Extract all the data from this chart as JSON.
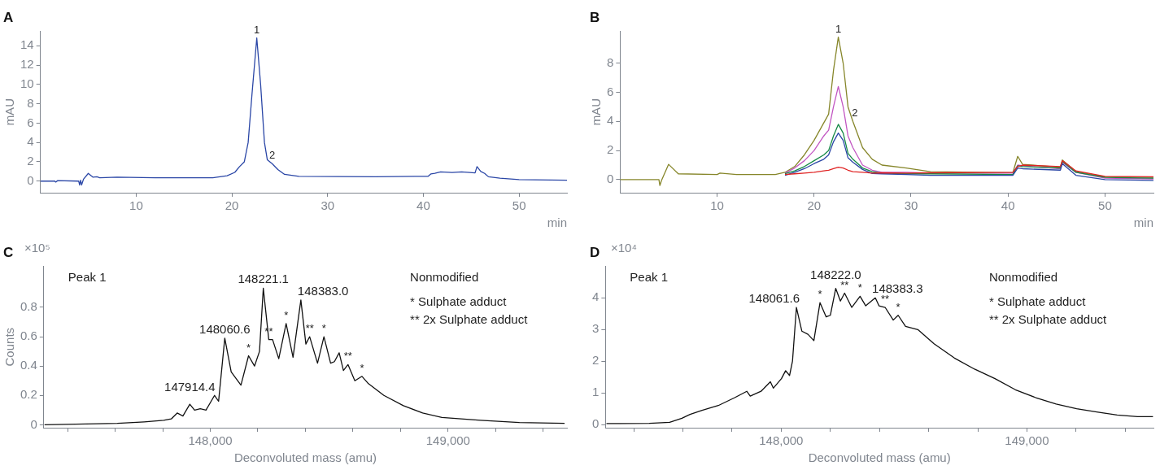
{
  "chart_data": [
    {
      "type": "line",
      "title": "A",
      "xlabel": "min",
      "ylabel": "mAU",
      "xlim": [
        0,
        55
      ],
      "xticks": [
        10,
        20,
        30,
        40,
        50
      ],
      "ylim": [
        -1.2,
        15.5
      ],
      "yticks": [
        0,
        2,
        4,
        6,
        8,
        10,
        12,
        14
      ],
      "series": [
        {
          "color": "#2a46a6",
          "x": [
            0,
            1.5,
            1.6,
            1.8,
            4,
            4.1,
            4.2,
            4.3,
            4.5,
            5.0,
            5.5,
            5.9,
            6.2,
            8,
            12,
            18,
            19.5,
            20.3,
            20.8,
            21.3,
            21.7,
            22.1,
            22.6,
            23.0,
            23.4,
            23.7,
            24.2,
            24.8,
            25.5,
            27,
            35,
            40.5,
            40.8,
            41.2,
            41.8,
            43,
            44,
            45.4,
            45.6,
            46,
            46.4,
            46.8,
            48,
            50,
            55
          ],
          "values": [
            0,
            0,
            -0.1,
            0.05,
            0,
            -0.4,
            0.1,
            -0.4,
            0.2,
            0.8,
            0.4,
            0.45,
            0.35,
            0.4,
            0.35,
            0.35,
            0.55,
            0.9,
            1.5,
            2.0,
            4,
            9,
            14.8,
            10,
            4,
            2.2,
            1.8,
            1.2,
            0.7,
            0.5,
            0.45,
            0.5,
            0.75,
            0.8,
            0.95,
            0.9,
            0.95,
            0.85,
            1.5,
            1.0,
            0.8,
            0.45,
            0.3,
            0.15,
            0.1
          ]
        }
      ],
      "annotations": [
        {
          "text": "1",
          "x": 22.6,
          "y": 14.8
        },
        {
          "text": "2",
          "x": 24.2,
          "y": 1.8
        }
      ]
    },
    {
      "type": "line",
      "title": "B",
      "xlabel": "min",
      "ylabel": "mAU",
      "xlim": [
        0,
        55
      ],
      "xticks": [
        10,
        20,
        30,
        40,
        50
      ],
      "ylim": [
        -0.9,
        10.2
      ],
      "yticks": [
        0,
        2,
        4,
        6,
        8
      ],
      "series": [
        {
          "color": "#e02424",
          "x": [
            17,
            18,
            19,
            20,
            21,
            21.5,
            22,
            22.5,
            23,
            23.5,
            24,
            25,
            26,
            27,
            29.5,
            32,
            40.5,
            41,
            41.5,
            45.4,
            45.6,
            47,
            50,
            55
          ],
          "values": [
            0.35,
            0.4,
            0.45,
            0.5,
            0.6,
            0.65,
            0.75,
            0.85,
            0.8,
            0.65,
            0.55,
            0.5,
            0.45,
            0.47,
            0.45,
            0.47,
            0.5,
            0.9,
            1.0,
            0.9,
            1.3,
            0.6,
            0.22,
            0.2
          ]
        },
        {
          "color": "#2a46a6",
          "x": [
            17,
            18,
            19,
            20,
            21,
            21.5,
            22,
            22.5,
            23,
            23.5,
            24,
            25,
            26,
            27,
            29.5,
            32,
            40.5,
            41,
            41.5,
            45.4,
            45.6,
            47,
            50,
            55
          ],
          "values": [
            0.3,
            0.5,
            0.75,
            1.1,
            1.4,
            1.7,
            2.6,
            3.2,
            2.7,
            1.5,
            1.2,
            0.7,
            0.42,
            0.4,
            0.35,
            0.3,
            0.3,
            0.8,
            0.75,
            0.65,
            1.1,
            0.3,
            0.0,
            -0.05
          ]
        },
        {
          "color": "#158a45",
          "x": [
            17,
            18,
            19,
            20,
            21,
            21.5,
            22,
            22.5,
            23,
            23.5,
            24,
            25,
            26,
            27,
            29.5,
            32,
            40.5,
            41,
            41.5,
            45.4,
            45.6,
            47,
            50,
            55
          ],
          "values": [
            0.4,
            0.6,
            0.9,
            1.3,
            1.7,
            2.0,
            3.0,
            3.8,
            3.2,
            1.8,
            1.4,
            0.8,
            0.55,
            0.45,
            0.4,
            0.4,
            0.35,
            0.95,
            0.9,
            0.8,
            1.25,
            0.5,
            0.15,
            0.1
          ]
        },
        {
          "color": "#c256c2",
          "x": [
            17,
            18,
            19,
            20,
            21,
            21.5,
            22,
            22.5,
            23,
            23.5,
            24,
            25,
            26,
            27,
            29.5,
            32,
            40.5,
            41,
            41.5,
            45.4,
            45.6,
            47,
            50,
            55
          ],
          "values": [
            0.45,
            0.8,
            1.3,
            2.0,
            3.0,
            3.4,
            5.0,
            6.4,
            5.0,
            3.0,
            2.2,
            1.0,
            0.65,
            0.5,
            0.5,
            0.45,
            0.45,
            1.0,
            0.95,
            0.75,
            1.2,
            0.5,
            0.1,
            0.05
          ]
        },
        {
          "color": "#86862a",
          "x": [
            0,
            1.5,
            4,
            4.1,
            4.3,
            5,
            6,
            10,
            10.3,
            12,
            16,
            17,
            18,
            19,
            20,
            21,
            21.5,
            22,
            22.5,
            23,
            23.5,
            24,
            25,
            26,
            27,
            29.5,
            32,
            40.5,
            41,
            41.5,
            45.4,
            45.6,
            47,
            50,
            55
          ],
          "values": [
            0,
            0,
            0,
            -0.4,
            0,
            1.05,
            0.4,
            0.35,
            0.45,
            0.35,
            0.35,
            0.5,
            0.9,
            1.7,
            2.7,
            3.9,
            4.5,
            7.5,
            9.8,
            8,
            5,
            4,
            2.2,
            1.4,
            1,
            0.8,
            0.55,
            0.48,
            1.6,
            1.05,
            0.85,
            1.35,
            0.55,
            0.2,
            0.15
          ]
        }
      ],
      "annotations": [
        {
          "text": "1",
          "x": 22.5,
          "y": 9.8
        },
        {
          "text": "2",
          "x": 24.2,
          "y": 4.0
        }
      ]
    },
    {
      "type": "line",
      "title": "C",
      "xlabel": "Deconvoluted mass (amu)",
      "ylabel": "Counts",
      "xlim": [
        147300,
        149500
      ],
      "xticks": [
        {
          "value": 147400,
          "label": null
        },
        {
          "value": 147600,
          "label": null
        },
        {
          "value": 147800,
          "label": null
        },
        {
          "value": 148000,
          "label": "148,000"
        },
        {
          "value": 148200,
          "label": null
        },
        {
          "value": 148400,
          "label": null
        },
        {
          "value": 148600,
          "label": null
        },
        {
          "value": 148800,
          "label": null
        },
        {
          "value": 149000,
          "label": "149,000"
        },
        {
          "value": 149200,
          "label": null
        },
        {
          "value": 149400,
          "label": null
        }
      ],
      "ylim": [
        -0.02,
        1.08
      ],
      "yticks": [
        0,
        0.2,
        0.4,
        0.6,
        0.8
      ],
      "series": [
        {
          "color": "#111111",
          "x": [
            147303,
            147609,
            147674,
            147722,
            147804,
            147836,
            147861,
            147885,
            147914,
            147934,
            147958,
            147982,
            148018,
            148035,
            148061,
            148088,
            148129,
            148161,
            148186,
            148207,
            148223,
            148246,
            148262,
            148288,
            148319,
            148348,
            148381,
            148402,
            148418,
            148451,
            148478,
            148506,
            148522,
            148542,
            148560,
            148579,
            148608,
            148638,
            148665,
            148730,
            148812,
            148893,
            148974,
            149137,
            149300,
            149490
          ],
          "values": [
            0,
            0.01,
            0.015,
            0.02,
            0.03,
            0.04,
            0.08,
            0.06,
            0.14,
            0.1,
            0.11,
            0.1,
            0.2,
            0.16,
            0.59,
            0.36,
            0.27,
            0.47,
            0.4,
            0.5,
            0.93,
            0.58,
            0.58,
            0.45,
            0.69,
            0.46,
            0.85,
            0.55,
            0.6,
            0.42,
            0.6,
            0.42,
            0.43,
            0.49,
            0.37,
            0.41,
            0.3,
            0.33,
            0.28,
            0.2,
            0.13,
            0.08,
            0.05,
            0.03,
            0.015,
            0.01
          ]
        }
      ],
      "annotations": [
        "×10⁵",
        "Peak 1",
        "Nonmodified",
        "* Sulphate adduct",
        "** 2x Sulphate adduct",
        {
          "text": "*",
          "x": 148161,
          "y": 0.47
        },
        {
          "text": "**",
          "x": 148246,
          "y": 0.58
        },
        {
          "text": "*",
          "x": 148319,
          "y": 0.69
        },
        {
          "text": "**",
          "x": 148418,
          "y": 0.6
        },
        {
          "text": "*",
          "x": 148478,
          "y": 0.6
        },
        {
          "text": "**",
          "x": 148579,
          "y": 0.41
        },
        {
          "text": "*",
          "x": 148638,
          "y": 0.33
        },
        {
          "text": "147914.4",
          "x": 147914,
          "y": 0.14
        },
        {
          "text": "148060.6",
          "x": 148061,
          "y": 0.59
        },
        {
          "text": "148221.1",
          "x": 148223,
          "y": 0.93
        },
        {
          "text": "148383.0",
          "x": 148381,
          "y": 0.85
        }
      ]
    },
    {
      "type": "line",
      "title": "D",
      "xlabel": "Deconvoluted mass (amu)",
      "xlim": [
        147285,
        149515
      ],
      "xticks": [
        {
          "value": 147400,
          "label": null
        },
        {
          "value": 147600,
          "label": null
        },
        {
          "value": 147800,
          "label": null
        },
        {
          "value": 148000,
          "label": "148,000"
        },
        {
          "value": 148200,
          "label": null
        },
        {
          "value": 148400,
          "label": null
        },
        {
          "value": 148600,
          "label": null
        },
        {
          "value": 148800,
          "label": null
        },
        {
          "value": 149000,
          "label": "149,000"
        },
        {
          "value": 149200,
          "label": null
        },
        {
          "value": 149400,
          "label": null
        }
      ],
      "ylim": [
        -0.1,
        5.0
      ],
      "yticks": [
        0,
        1,
        2,
        3,
        4
      ],
      "series": [
        {
          "color": "#111111",
          "x": [
            147289,
            147463,
            147546,
            147596,
            147629,
            147678,
            147744,
            147811,
            147860,
            147874,
            147918,
            147956,
            147968,
            148001,
            148018,
            148034,
            148046,
            148062,
            148084,
            148109,
            148133,
            148158,
            148183,
            148200,
            148222,
            148241,
            148258,
            148287,
            148321,
            148344,
            148383,
            148398,
            148423,
            148456,
            148476,
            148506,
            148556,
            148622,
            148705,
            148787,
            148870,
            148953,
            149036,
            149119,
            149202,
            149284,
            149367,
            149450,
            149513
          ],
          "values": [
            0.03,
            0.04,
            0.07,
            0.2,
            0.32,
            0.45,
            0.6,
            0.85,
            1.05,
            0.9,
            1.05,
            1.35,
            1.15,
            1.45,
            1.7,
            1.55,
            2.0,
            3.7,
            2.95,
            2.85,
            2.65,
            3.85,
            3.4,
            3.45,
            4.3,
            3.9,
            4.15,
            3.7,
            4.05,
            3.75,
            4.0,
            3.75,
            3.7,
            3.3,
            3.45,
            3.1,
            3.0,
            2.55,
            2.1,
            1.75,
            1.45,
            1.1,
            0.85,
            0.65,
            0.5,
            0.4,
            0.3,
            0.25,
            0.25
          ]
        }
      ],
      "annotations": [
        "×10⁴",
        "Peak 1",
        "Nonmodified",
        "* Sulphate adduct",
        "** 2x Sulphate adduct",
        {
          "text": "*",
          "x": 148158,
          "y": 3.85
        },
        {
          "text": "**",
          "x": 148258,
          "y": 4.15
        },
        {
          "text": "*",
          "x": 148321,
          "y": 4.05
        },
        {
          "text": "**",
          "x": 148423,
          "y": 3.7
        },
        {
          "text": "*",
          "x": 148476,
          "y": 3.45
        },
        {
          "text": "148061.6",
          "x": 148062,
          "y": 3.7
        },
        {
          "text": "148222.0",
          "x": 148222,
          "y": 4.3
        },
        {
          "text": "148383.3",
          "x": 148383,
          "y": 4.0
        }
      ]
    }
  ]
}
